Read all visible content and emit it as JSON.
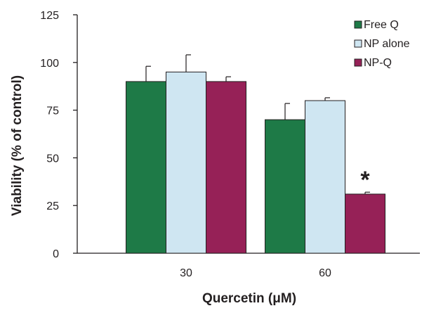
{
  "chart_data": {
    "type": "bar",
    "title": "",
    "xlabel": "Quercetin (μM)",
    "ylabel": "Viability (% of control)",
    "categories": [
      "30",
      "60"
    ],
    "ylim": [
      0,
      125
    ],
    "yticks": [
      0,
      25,
      50,
      75,
      100,
      125
    ],
    "grid": false,
    "legend_position": "top-right",
    "series": [
      {
        "name": "Free Q",
        "values": [
          90,
          70
        ],
        "errors": [
          8,
          8.5
        ],
        "color": "#1e7a47"
      },
      {
        "name": "NP alone",
        "values": [
          95,
          80
        ],
        "errors": [
          9,
          1.5
        ],
        "color": "#cfe6f2"
      },
      {
        "name": "NP-Q",
        "values": [
          90,
          31
        ],
        "errors": [
          2.5,
          1
        ],
        "color": "#962157"
      }
    ],
    "annotations": [
      {
        "text": "*",
        "category": "60",
        "series": "NP-Q"
      }
    ]
  }
}
